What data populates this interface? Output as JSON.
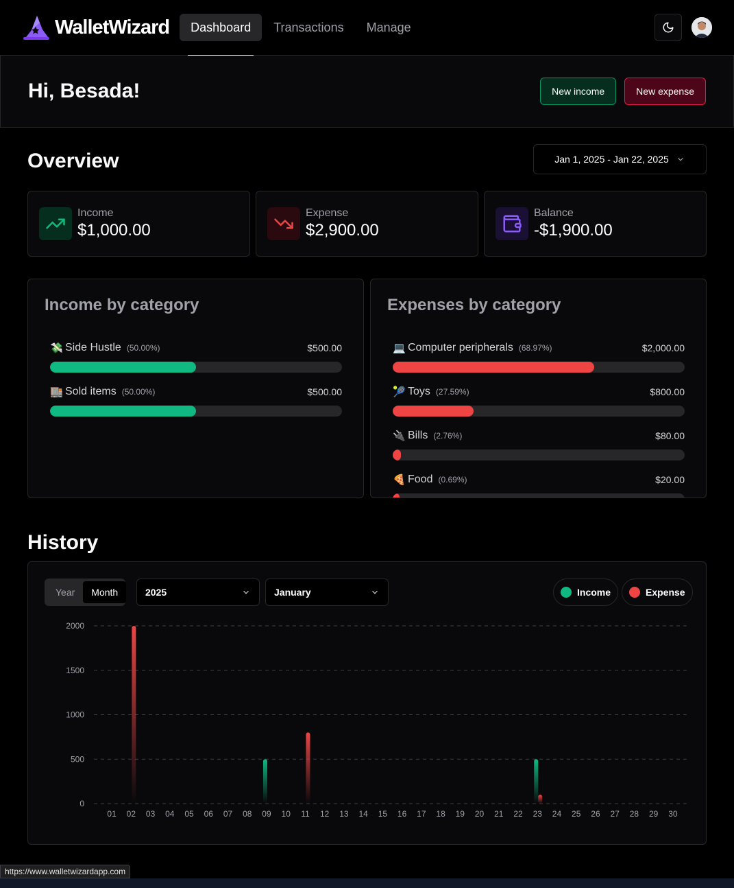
{
  "app": {
    "name": "WalletWizard"
  },
  "nav": {
    "links": [
      {
        "label": "Dashboard",
        "active": true
      },
      {
        "label": "Transactions",
        "active": false
      },
      {
        "label": "Manage",
        "active": false
      }
    ]
  },
  "greeting": {
    "title": "Hi, Besada!",
    "new_income": "New income",
    "new_expense": "New expense"
  },
  "overview": {
    "title": "Overview",
    "date_range": "Jan 1, 2025 - Jan 22, 2025",
    "stats": [
      {
        "label": "Income",
        "value": "$1,000.00",
        "icon": "trending-up-icon",
        "color": "#10b981"
      },
      {
        "label": "Expense",
        "value": "$2,900.00",
        "icon": "trending-down-icon",
        "color": "#ef4444"
      },
      {
        "label": "Balance",
        "value": "-$1,900.00",
        "icon": "wallet-icon",
        "color": "#8b5cf6"
      }
    ]
  },
  "income_by_category": {
    "title": "Income by category",
    "items": [
      {
        "emoji": "💸",
        "name": "Side Hustle",
        "percent": "(50.00%)",
        "amount": "$500.00",
        "fill": 0.5
      },
      {
        "emoji": "🏬",
        "name": "Sold items",
        "percent": "(50.00%)",
        "amount": "$500.00",
        "fill": 0.5
      }
    ]
  },
  "expenses_by_category": {
    "title": "Expenses by category",
    "items": [
      {
        "emoji": "💻",
        "name": "Computer peripherals",
        "percent": "(68.97%)",
        "amount": "$2,000.00",
        "fill": 0.6897
      },
      {
        "emoji": "🎾",
        "name": "Toys",
        "percent": "(27.59%)",
        "amount": "$800.00",
        "fill": 0.2759
      },
      {
        "emoji": "🔌",
        "name": "Bills",
        "percent": "(2.76%)",
        "amount": "$80.00",
        "fill": 0.0276
      },
      {
        "emoji": "🍕",
        "name": "Food",
        "percent": "(0.69%)",
        "amount": "$20.00",
        "fill": 0.0069
      }
    ]
  },
  "history": {
    "title": "History",
    "period_toggle": {
      "options": [
        "Year",
        "Month"
      ],
      "selected": "Month"
    },
    "year_select": "2025",
    "month_select": "January",
    "legend": {
      "income": "Income",
      "expense": "Expense"
    }
  },
  "colors": {
    "income": "#10b981",
    "expense": "#ef4444",
    "accent": "#8b5cf6"
  },
  "chart_data": {
    "type": "bar",
    "x": [
      "01",
      "02",
      "03",
      "04",
      "05",
      "06",
      "07",
      "08",
      "09",
      "10",
      "11",
      "12",
      "13",
      "14",
      "15",
      "16",
      "17",
      "18",
      "19",
      "20",
      "21",
      "22",
      "23",
      "24",
      "25",
      "26",
      "27",
      "28",
      "29",
      "30"
    ],
    "series": [
      {
        "name": "Income",
        "values": [
          0,
          0,
          0,
          0,
          0,
          0,
          0,
          0,
          500,
          0,
          0,
          0,
          0,
          0,
          0,
          0,
          0,
          0,
          0,
          0,
          0,
          0,
          500,
          0,
          0,
          0,
          0,
          0,
          0,
          0
        ]
      },
      {
        "name": "Expense",
        "values": [
          0,
          2000,
          0,
          0,
          0,
          0,
          0,
          0,
          0,
          0,
          800,
          0,
          0,
          0,
          0,
          0,
          0,
          0,
          0,
          0,
          0,
          0,
          100,
          0,
          0,
          0,
          0,
          0,
          0,
          0
        ]
      }
    ],
    "yticks": [
      0,
      500,
      1000,
      1500,
      2000
    ],
    "ylim": [
      0,
      2000
    ],
    "grid": true,
    "legend": "top-right"
  },
  "status_url": "https://www.walletwizardapp.com"
}
